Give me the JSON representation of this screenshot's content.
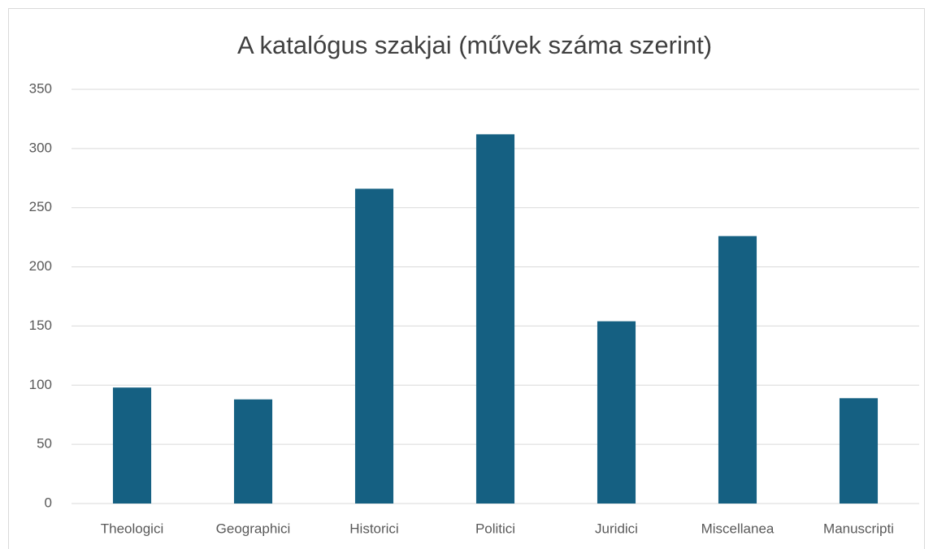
{
  "chart_data": {
    "type": "bar",
    "title": "A katalógus szakjai (művek száma szerint)",
    "categories": [
      "Theologici",
      "Geographici",
      "Historici",
      "Politici",
      "Juridici",
      "Miscellanea",
      "Manuscripti"
    ],
    "values": [
      98,
      88,
      266,
      312,
      154,
      226,
      89
    ],
    "color": "#156082",
    "ylim": [
      0,
      350
    ],
    "yticks": [
      0,
      50,
      100,
      150,
      200,
      250,
      300,
      350
    ],
    "grid": true
  }
}
